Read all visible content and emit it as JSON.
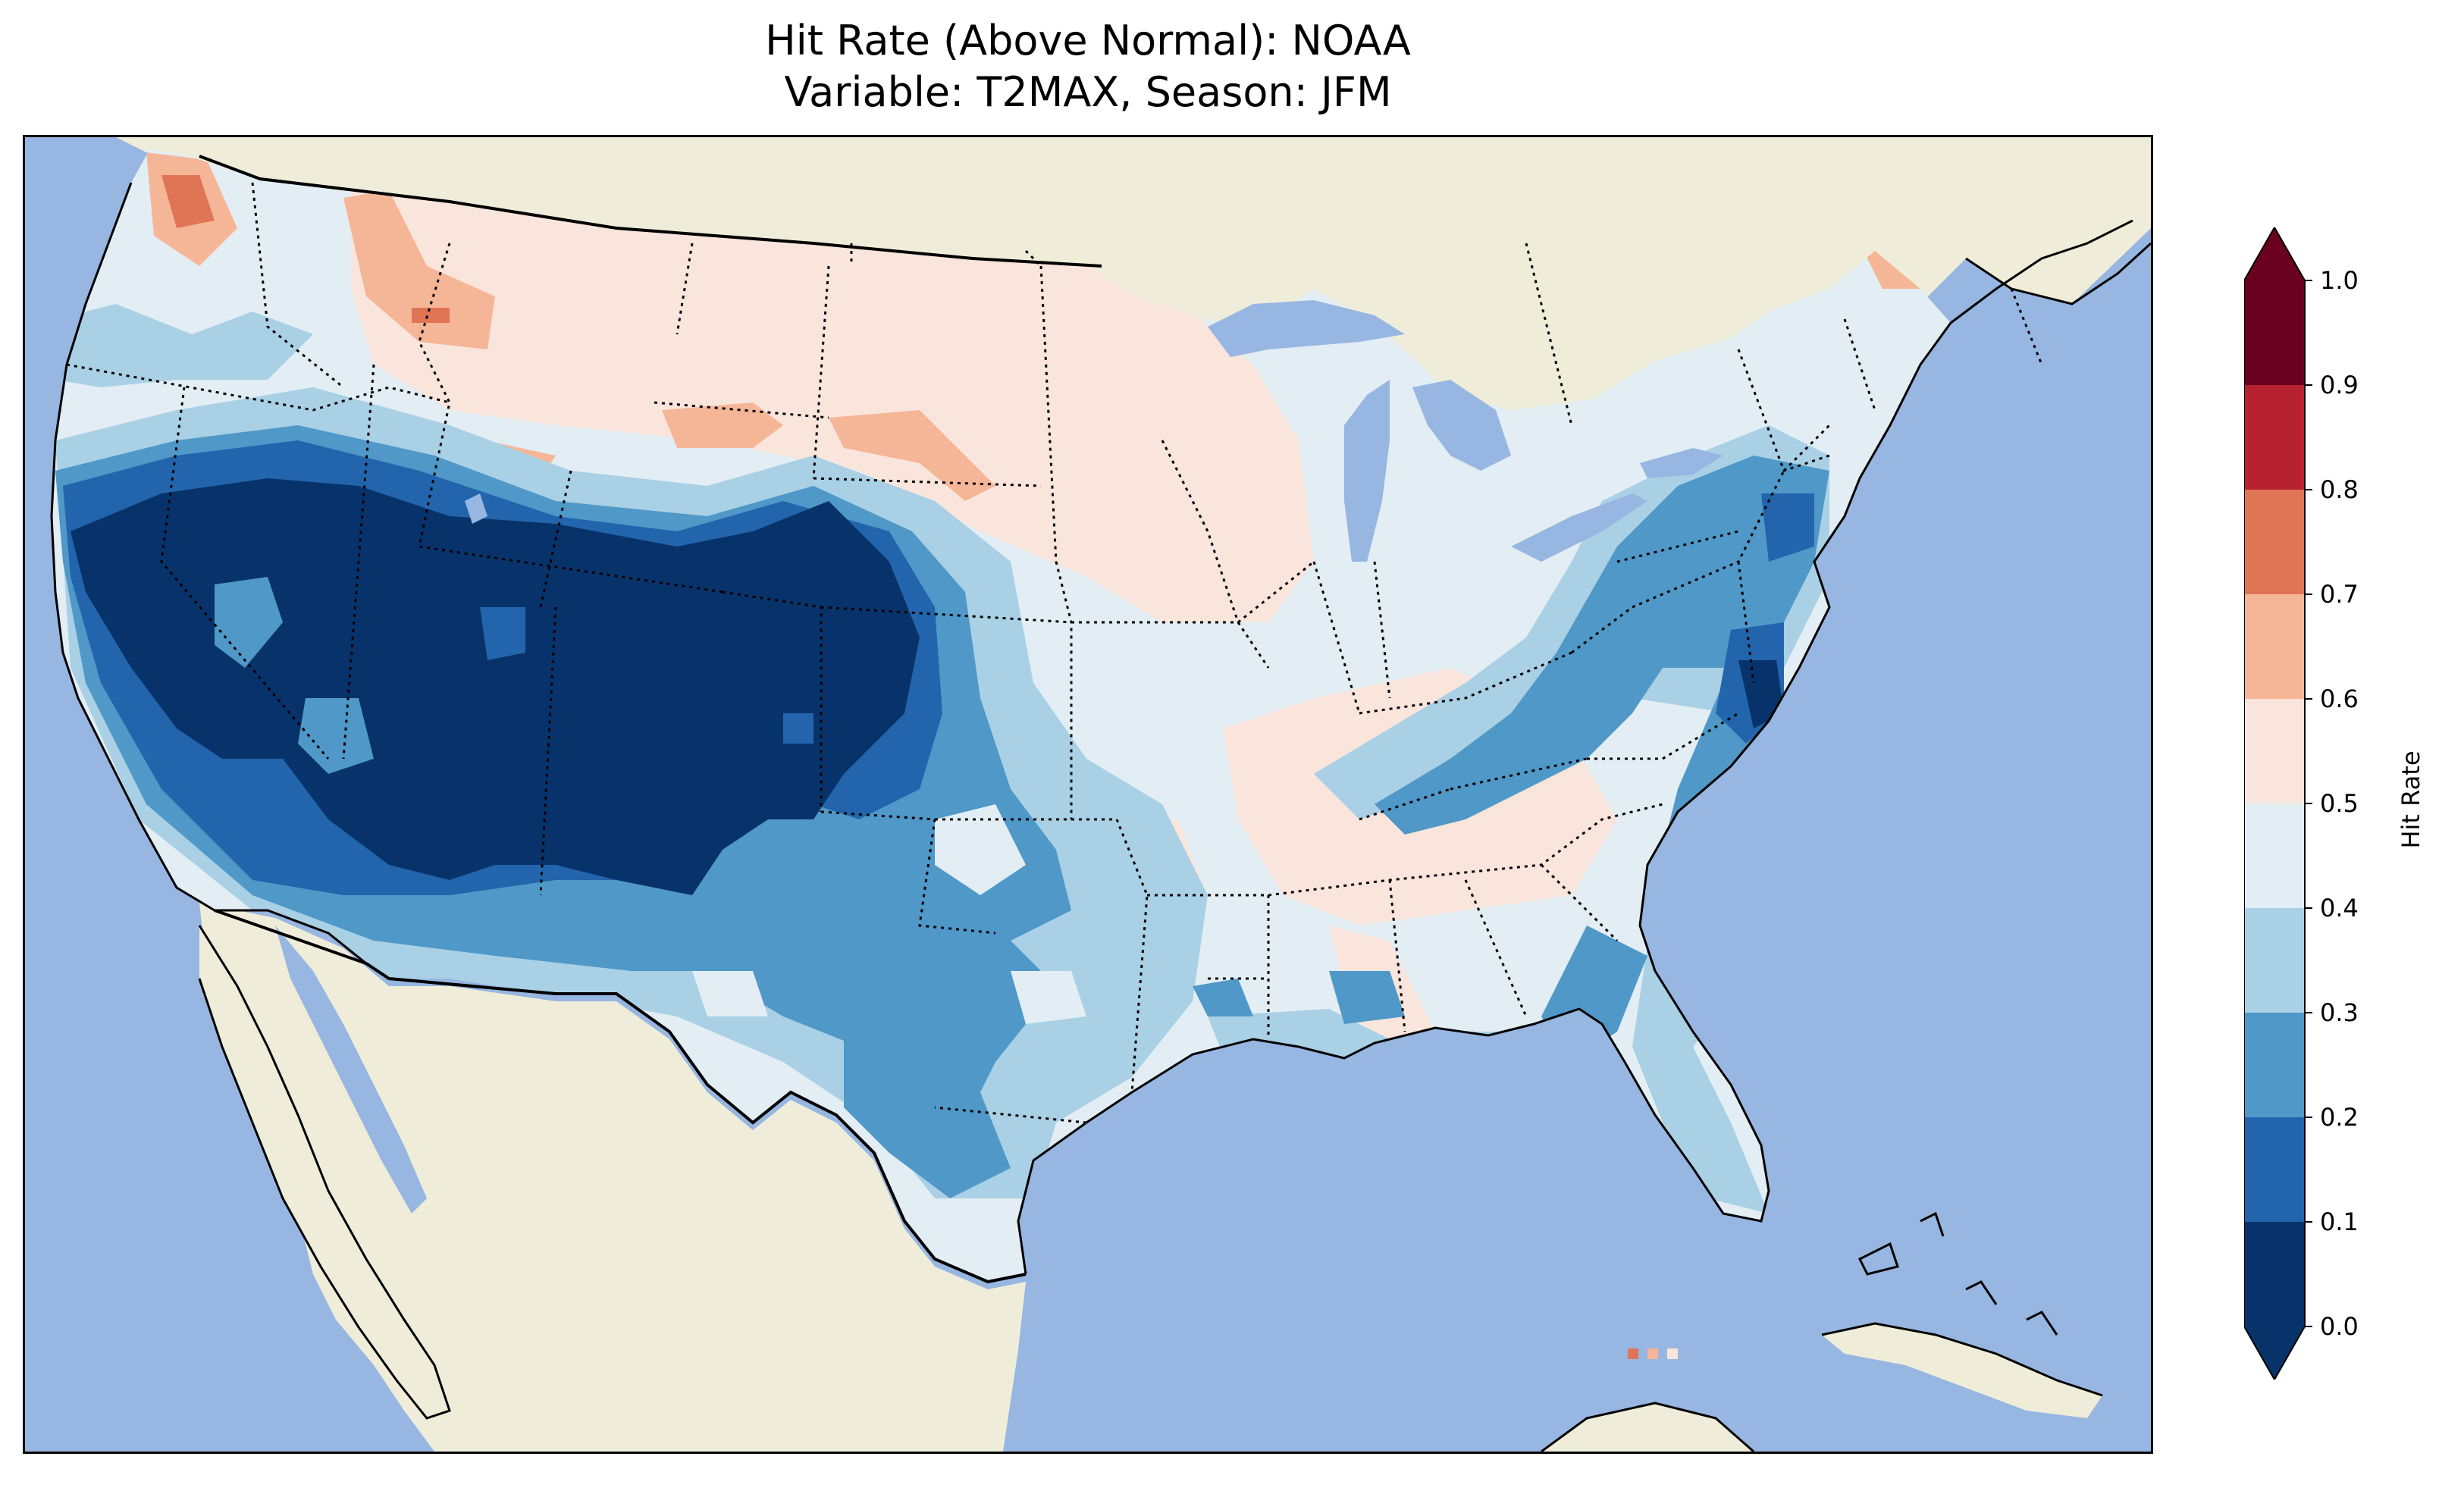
{
  "figure": {
    "title_line1": "Hit Rate (Above Normal): NOAA",
    "title_line2": "Variable: T2MAX, Season: JFM"
  },
  "map_data": {
    "region": "Contiguous United States",
    "variable": "T2MAX",
    "season": "JFM",
    "colors": {
      "ocean": "#97b6e1",
      "land": "#efedd9",
      "coastline": "#000000",
      "borders": "#000000"
    },
    "summary": [
      {
        "region": "Southwest, Great Basin, Four Corners, California",
        "value_range": [
          0.0,
          0.1
        ]
      },
      {
        "region": "Southern Plains, Texas",
        "value_range": [
          0.2,
          0.4
        ]
      },
      {
        "region": "Northern Plains, Northern Rockies, Midwest",
        "value_range": [
          0.5,
          0.6
        ]
      },
      {
        "region": "Pacific Northwest coast",
        "value_range": [
          0.6,
          0.8
        ]
      },
      {
        "region": "Northeast, Mid-Atlantic",
        "value_range": [
          0.1,
          0.3
        ]
      },
      {
        "region": "Southeast, Florida",
        "value_range": [
          0.2,
          0.5
        ]
      }
    ]
  },
  "colorbar": {
    "label": "Hit Rate",
    "ticks": [
      "0.0",
      "0.1",
      "0.2",
      "0.3",
      "0.4",
      "0.5",
      "0.6",
      "0.7",
      "0.8",
      "0.9",
      "1.0"
    ],
    "bins": [
      {
        "min": 0.0,
        "max": 0.1,
        "color": "#08336a"
      },
      {
        "min": 0.1,
        "max": 0.2,
        "color": "#2265ad"
      },
      {
        "min": 0.2,
        "max": 0.3,
        "color": "#4f98c8"
      },
      {
        "min": 0.3,
        "max": 0.4,
        "color": "#a9d0e5"
      },
      {
        "min": 0.4,
        "max": 0.5,
        "color": "#e2edf4"
      },
      {
        "min": 0.5,
        "max": 0.6,
        "color": "#f9e5dc"
      },
      {
        "min": 0.6,
        "max": 0.7,
        "color": "#f5b697"
      },
      {
        "min": 0.7,
        "max": 0.8,
        "color": "#e07556"
      },
      {
        "min": 0.8,
        "max": 0.9,
        "color": "#b6222f"
      },
      {
        "min": 0.9,
        "max": 1.0,
        "color": "#6b0121"
      }
    ],
    "extend_under_color": "#08336a",
    "extend_over_color": "#6b0121"
  }
}
